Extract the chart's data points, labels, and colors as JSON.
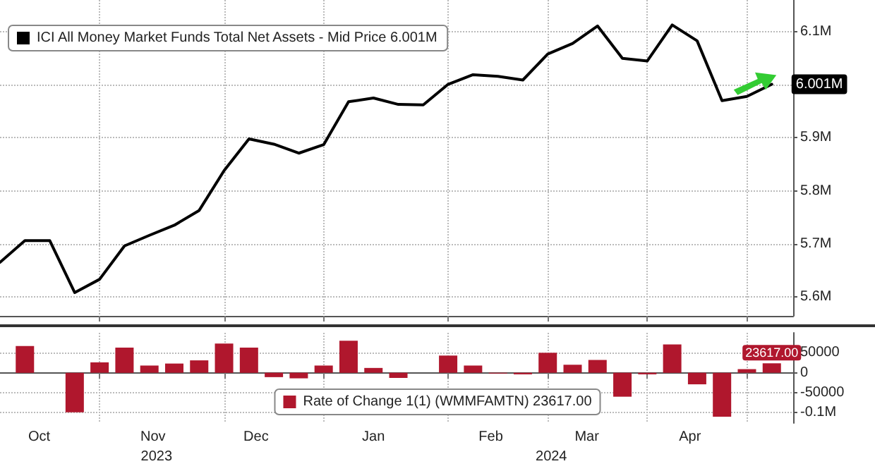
{
  "chart_data": [
    {
      "type": "line",
      "x": [
        "2023-10-04",
        "2023-10-11",
        "2023-10-18",
        "2023-10-25",
        "2023-11-01",
        "2023-11-08",
        "2023-11-15",
        "2023-11-22",
        "2023-11-29",
        "2023-12-06",
        "2023-12-13",
        "2023-12-20",
        "2023-12-27",
        "2024-01-03",
        "2024-01-10",
        "2024-01-17",
        "2024-01-24",
        "2024-01-31",
        "2024-02-07",
        "2024-02-14",
        "2024-02-21",
        "2024-02-28",
        "2024-03-06",
        "2024-03-13",
        "2024-03-20",
        "2024-03-27",
        "2024-04-03",
        "2024-04-10",
        "2024-04-17",
        "2024-04-24",
        "2024-05-01",
        "2024-05-08"
      ],
      "series": [
        {
          "name": "ICI All Money Market Funds Total Net Assets - Mid Price 6.001M",
          "color": "#000000",
          "values": [
            5.665,
            5.706,
            5.706,
            5.608,
            5.633,
            5.696,
            5.716,
            5.735,
            5.763,
            5.838,
            5.898,
            5.888,
            5.871,
            5.887,
            5.968,
            5.975,
            5.963,
            5.962,
            6.001,
            6.019,
            6.016,
            6.009,
            6.058,
            6.078,
            6.111,
            6.05,
            6.045,
            6.113,
            6.083,
            5.97,
            5.978,
            6.001
          ],
          "value_labels": [
            null,
            null,
            null,
            null,
            null,
            null,
            null,
            null,
            null,
            null,
            null,
            null,
            null,
            null,
            null,
            null,
            null,
            null,
            null,
            null,
            null,
            null,
            null,
            null,
            null,
            null,
            null,
            null,
            null,
            null,
            null,
            "6.001M"
          ]
        }
      ],
      "xlim": [
        "2023-10-04",
        "2024-05-14"
      ],
      "xticks": [
        {
          "value": "2023-11-01",
          "label": null
        },
        {
          "value": "2023-12-06",
          "label": null
        },
        {
          "value": "2024-01-03",
          "label": null
        },
        {
          "value": "2024-02-07",
          "label": null
        },
        {
          "value": "2024-03-06",
          "label": null
        },
        {
          "value": "2024-04-03",
          "label": null
        },
        {
          "value": "2024-05-01",
          "label": null
        }
      ],
      "ylim": [
        5.564,
        6.16
      ],
      "yticks": [
        {
          "value": 5.6,
          "label": "5.6M"
        },
        {
          "value": 5.7,
          "label": "5.7M"
        },
        {
          "value": 5.8,
          "label": "5.8M"
        },
        {
          "value": 5.9,
          "label": "5.9M"
        },
        {
          "value": 6.0,
          "label": null
        },
        {
          "value": 6.1,
          "label": "6.1M"
        }
      ],
      "tick_labels": "y",
      "grid": true,
      "legend": "top left",
      "marker": "none"
    },
    {
      "type": "bar",
      "x": [
        "2023-10-11",
        "2023-10-18",
        "2023-10-25",
        "2023-11-01",
        "2023-11-08",
        "2023-11-15",
        "2023-11-22",
        "2023-11-29",
        "2023-12-06",
        "2023-12-13",
        "2023-12-20",
        "2023-12-27",
        "2024-01-03",
        "2024-01-10",
        "2024-01-17",
        "2024-01-24",
        "2024-01-31",
        "2024-02-07",
        "2024-02-14",
        "2024-02-21",
        "2024-02-28",
        "2024-03-06",
        "2024-03-13",
        "2024-03-20",
        "2024-03-27",
        "2024-04-03",
        "2024-04-10",
        "2024-04-17",
        "2024-04-24",
        "2024-05-01",
        "2024-05-08"
      ],
      "series": [
        {
          "name": "Rate of Change 1(1) (WMMFAMTN) 23617.00",
          "color": "#b0172d",
          "values": [
            67000,
            0,
            -99000,
            26000,
            63000,
            18000,
            23000,
            31000,
            73000,
            63000,
            -11000,
            -14000,
            18000,
            80000,
            12000,
            -13000,
            0,
            43000,
            18000,
            -2000,
            -4000,
            50000,
            20000,
            32000,
            -60000,
            -4000,
            71000,
            -29000,
            -110000,
            9000,
            23617
          ],
          "value_labels": [
            null,
            null,
            null,
            null,
            null,
            null,
            null,
            null,
            null,
            null,
            null,
            null,
            null,
            null,
            null,
            null,
            null,
            null,
            null,
            null,
            null,
            null,
            null,
            null,
            null,
            null,
            null,
            null,
            null,
            null,
            "23617.00"
          ]
        }
      ],
      "xlim": [
        "2023-10-04",
        "2024-05-14"
      ],
      "xticks": [
        {
          "value": "2023-10-15",
          "label": "Oct"
        },
        {
          "value": "2023-11-01",
          "label": null
        },
        {
          "value": "2023-11-16",
          "label": "Nov"
        },
        {
          "value": "2023-12-06",
          "label": null
        },
        {
          "value": "2023-12-15",
          "label": "Dec"
        },
        {
          "value": "2024-01-03",
          "label": null
        },
        {
          "value": "2024-01-17",
          "label": "Jan"
        },
        {
          "value": "2024-02-07",
          "label": null
        },
        {
          "value": "2024-02-19",
          "label": "Feb"
        },
        {
          "value": "2024-03-06",
          "label": null
        },
        {
          "value": "2024-03-17",
          "label": "Mar"
        },
        {
          "value": "2024-04-03",
          "label": null
        },
        {
          "value": "2024-04-15",
          "label": "Apr"
        },
        {
          "value": "2024-05-01",
          "label": null
        }
      ],
      "x2lim": [
        "2023-10-04",
        "2024-05-14"
      ],
      "x2ticks": [
        {
          "value": "2023-11-17",
          "label": "2023"
        },
        {
          "value": "2024-03-07",
          "label": "2024"
        }
      ],
      "ylim": [
        -126000,
        100000
      ],
      "yticks": [
        50000,
        0,
        -50000,
        {
          "value": -100000,
          "label": "-0.1M"
        }
      ],
      "grid": true,
      "legend": "bottom"
    }
  ]
}
